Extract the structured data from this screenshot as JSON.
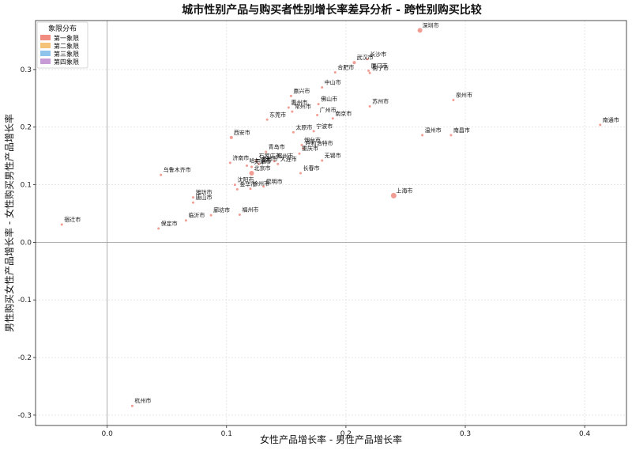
{
  "chart_data": {
    "type": "scatter",
    "title": "城市性别产品与购买者性别增长率差异分析 - 跨性别购买比较",
    "xlabel": "女性产品增长率 - 男性产品增长率",
    "ylabel": "男性购买女性产品增长率 - 女性购买男性产品增长率",
    "xlim": [
      -0.06,
      0.435
    ],
    "ylim": [
      -0.318,
      0.385
    ],
    "xticks": [
      "0.0",
      "0.1",
      "0.2",
      "0.3",
      "0.4"
    ],
    "xtick_values": [
      0.0,
      0.1,
      0.2,
      0.3,
      0.4
    ],
    "yticks": [
      "-0.3",
      "-0.2",
      "-0.1",
      "0.0",
      "0.1",
      "0.2",
      "0.3"
    ],
    "ytick_values": [
      -0.3,
      -0.2,
      -0.1,
      0.0,
      0.1,
      0.2,
      0.3
    ],
    "grid": true,
    "reference_lines": {
      "x": 0,
      "y": 0
    },
    "legend": {
      "title": "象限分布",
      "placement": "top-left",
      "entries": [
        {
          "label": "第一象限",
          "color": "#f08c80"
        },
        {
          "label": "第二象限",
          "color": "#f5c27a"
        },
        {
          "label": "第三象限",
          "color": "#8ec4ec"
        },
        {
          "label": "第四象限",
          "color": "#c79bd6"
        }
      ]
    },
    "point_color": "#f08c80",
    "points": [
      {
        "name": "深圳市",
        "x": 0.262,
        "y": 0.368,
        "size": 3
      },
      {
        "name": "武汉市",
        "x": 0.207,
        "y": 0.312,
        "size": 2
      },
      {
        "name": "长沙市",
        "x": 0.218,
        "y": 0.318,
        "size": 1.5
      },
      {
        "name": "合肥市",
        "x": 0.191,
        "y": 0.295,
        "size": 1.5
      },
      {
        "name": "厦门市",
        "x": 0.219,
        "y": 0.298,
        "size": 1.5
      },
      {
        "name": "南宁市",
        "x": 0.22,
        "y": 0.294,
        "size": 1.5
      },
      {
        "name": "中山市",
        "x": 0.18,
        "y": 0.269,
        "size": 1.5
      },
      {
        "name": "嘉兴市",
        "x": 0.154,
        "y": 0.254,
        "size": 1.5
      },
      {
        "name": "佛山市",
        "x": 0.177,
        "y": 0.24,
        "size": 1.5
      },
      {
        "name": "惠州市",
        "x": 0.152,
        "y": 0.234,
        "size": 1.5
      },
      {
        "name": "常州市",
        "x": 0.155,
        "y": 0.227,
        "size": 1.5
      },
      {
        "name": "苏州市",
        "x": 0.22,
        "y": 0.236,
        "size": 1.5
      },
      {
        "name": "泉州市",
        "x": 0.29,
        "y": 0.247,
        "size": 1.5
      },
      {
        "name": "广州市",
        "x": 0.176,
        "y": 0.221,
        "size": 1.5
      },
      {
        "name": "南京市",
        "x": 0.189,
        "y": 0.215,
        "size": 1.5
      },
      {
        "name": "东莞市",
        "x": 0.134,
        "y": 0.213,
        "size": 1.5
      },
      {
        "name": "南通市",
        "x": 0.413,
        "y": 0.204,
        "size": 1.5
      },
      {
        "name": "太原市",
        "x": 0.156,
        "y": 0.191,
        "size": 1.5
      },
      {
        "name": "宁波市",
        "x": 0.173,
        "y": 0.193,
        "size": 1.5
      },
      {
        "name": "温州市",
        "x": 0.264,
        "y": 0.186,
        "size": 1.5
      },
      {
        "name": "南昌市",
        "x": 0.288,
        "y": 0.186,
        "size": 1.5
      },
      {
        "name": "西安市",
        "x": 0.104,
        "y": 0.182,
        "size": 2
      },
      {
        "name": "烟台市",
        "x": 0.163,
        "y": 0.169,
        "size": 1.5
      },
      {
        "name": "呼和浩特市",
        "x": 0.164,
        "y": 0.163,
        "size": 1.5
      },
      {
        "name": "青岛市",
        "x": 0.133,
        "y": 0.157,
        "size": 1.5
      },
      {
        "name": "重庆市",
        "x": 0.161,
        "y": 0.154,
        "size": 1.5
      },
      {
        "name": "济南市",
        "x": 0.103,
        "y": 0.138,
        "size": 1.5
      },
      {
        "name": "无锡市",
        "x": 0.18,
        "y": 0.142,
        "size": 1.5
      },
      {
        "name": "石家庄市",
        "x": 0.125,
        "y": 0.141,
        "size": 1.5
      },
      {
        "name": "郑州市",
        "x": 0.14,
        "y": 0.141,
        "size": 1.5
      },
      {
        "name": "成都市",
        "x": 0.127,
        "y": 0.136,
        "size": 1.5
      },
      {
        "name": "大连市",
        "x": 0.143,
        "y": 0.136,
        "size": 1.5
      },
      {
        "name": "哈尔滨市",
        "x": 0.117,
        "y": 0.133,
        "size": 1.5
      },
      {
        "name": "天津市",
        "x": 0.121,
        "y": 0.131,
        "size": 1.5
      },
      {
        "name": "北京市",
        "x": 0.121,
        "y": 0.12,
        "size": 3
      },
      {
        "name": "长春市",
        "x": 0.162,
        "y": 0.12,
        "size": 1.5
      },
      {
        "name": "乌鲁木齐市",
        "x": 0.045,
        "y": 0.117,
        "size": 1.5
      },
      {
        "name": "沈阳市",
        "x": 0.107,
        "y": 0.1,
        "size": 1.5
      },
      {
        "name": "昆明市",
        "x": 0.131,
        "y": 0.097,
        "size": 1.5
      },
      {
        "name": "金华市",
        "x": 0.109,
        "y": 0.092,
        "size": 1.5
      },
      {
        "name": "徐州市",
        "x": 0.12,
        "y": 0.093,
        "size": 1.5
      },
      {
        "name": "上海市",
        "x": 0.24,
        "y": 0.081,
        "size": 3.5
      },
      {
        "name": "潍坊市",
        "x": 0.072,
        "y": 0.078,
        "size": 1.5
      },
      {
        "name": "唐山市",
        "x": 0.072,
        "y": 0.069,
        "size": 1.5
      },
      {
        "name": "廊坊市",
        "x": 0.087,
        "y": 0.047,
        "size": 1.5
      },
      {
        "name": "福州市",
        "x": 0.111,
        "y": 0.048,
        "size": 1.5
      },
      {
        "name": "临沂市",
        "x": 0.066,
        "y": 0.038,
        "size": 1.5
      },
      {
        "name": "宿迁市",
        "x": -0.038,
        "y": 0.031,
        "size": 1.5
      },
      {
        "name": "保定市",
        "x": 0.043,
        "y": 0.024,
        "size": 1.5
      },
      {
        "name": "杭州市",
        "x": 0.021,
        "y": -0.284,
        "size": 1.5
      }
    ]
  }
}
